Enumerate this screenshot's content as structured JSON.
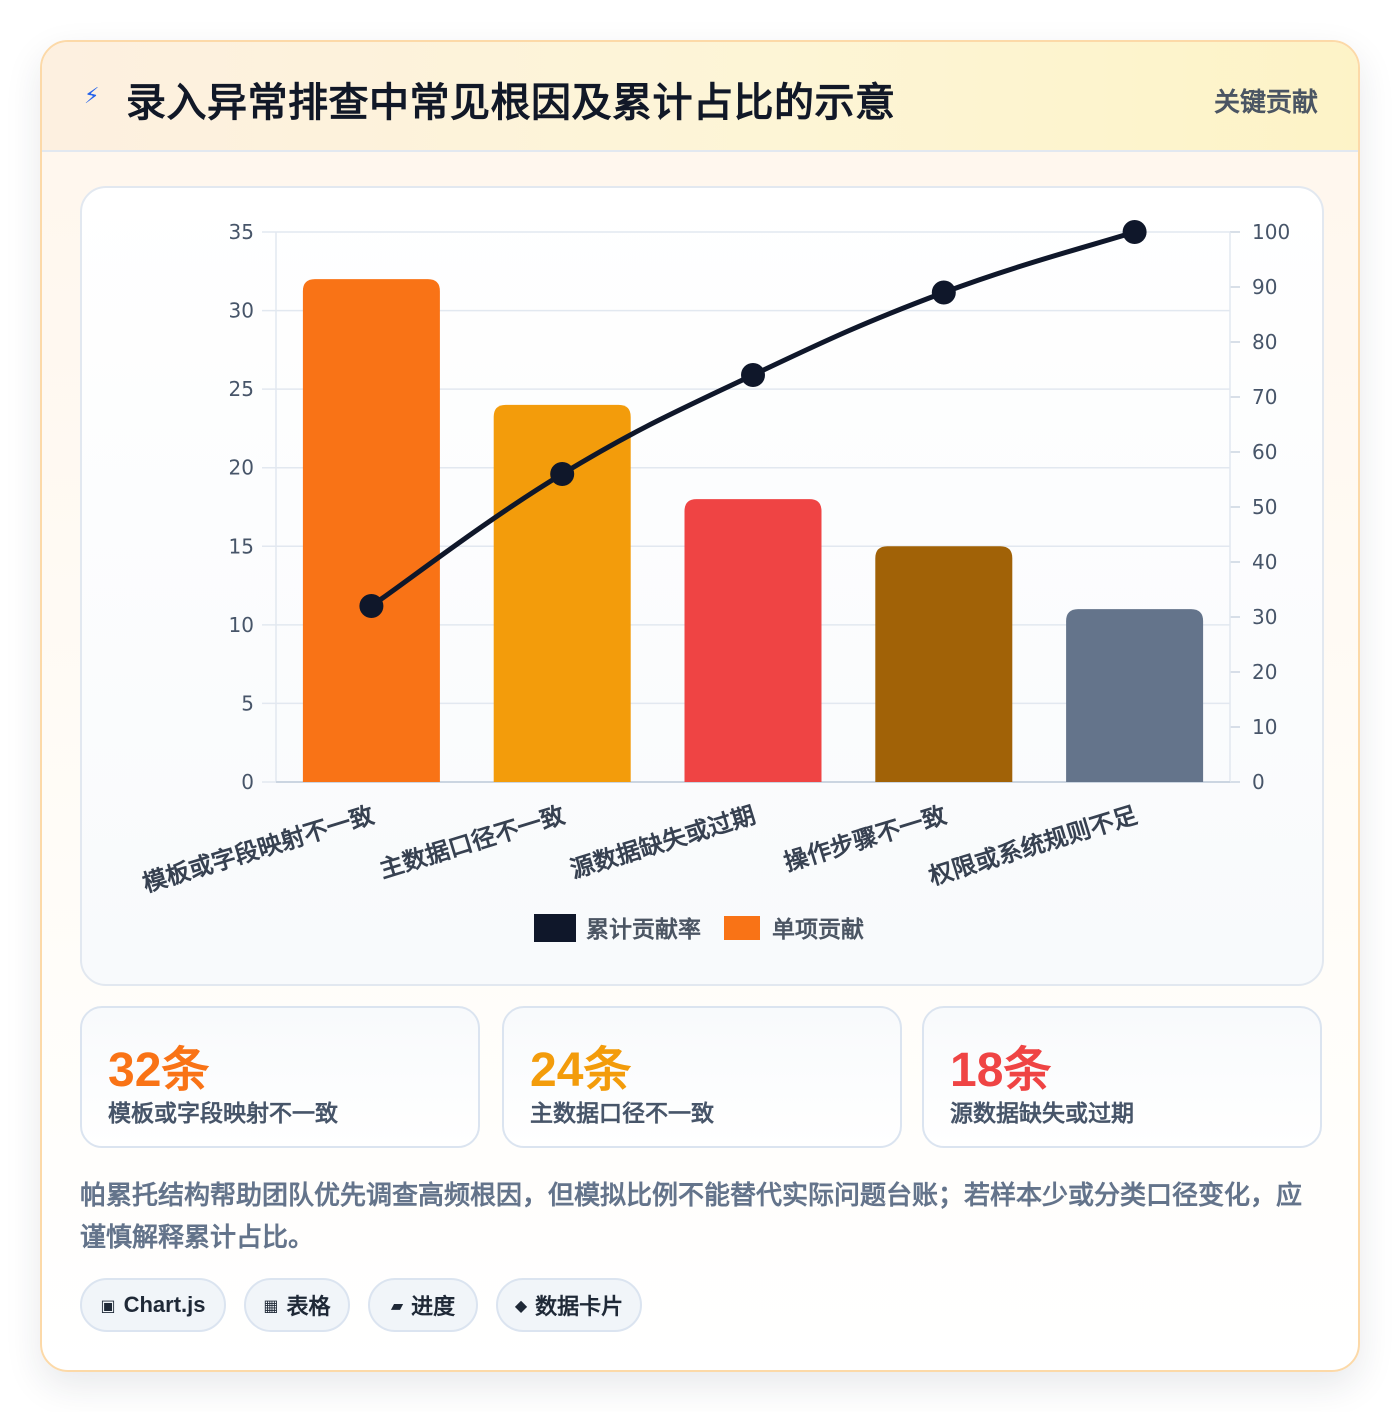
{
  "header": {
    "icon": "lightning-icon",
    "title": "录入异常排查中常见根因及累计占比的示意",
    "badge": "关键贡献"
  },
  "chart_data": {
    "type": "bar",
    "categories": [
      "模板或字段映射不一致",
      "主数据口径不一致",
      "源数据缺失或过期",
      "操作步骤不一致",
      "权限或系统规则不足"
    ],
    "series": [
      {
        "name": "单项贡献",
        "type": "bar",
        "axis": "left",
        "values": [
          32,
          24,
          18,
          15,
          11
        ],
        "colors": [
          "#f97316",
          "#f39c0b",
          "#ef4444",
          "#a16207",
          "#64748b"
        ]
      },
      {
        "name": "累计贡献率",
        "type": "line",
        "axis": "right",
        "values": [
          32,
          56,
          74,
          89,
          100
        ],
        "color": "#0f172a"
      }
    ],
    "y_left": {
      "min": 0,
      "max": 35,
      "ticks": [
        0,
        5,
        10,
        15,
        20,
        25,
        30,
        35
      ]
    },
    "y_right": {
      "min": 0,
      "max": 100,
      "ticks": [
        0,
        10,
        20,
        30,
        40,
        50,
        60,
        70,
        80,
        90,
        100
      ]
    },
    "grid": true,
    "legend": {
      "position": "bottom",
      "items": [
        {
          "label": "累计贡献率",
          "color": "#0f172a"
        },
        {
          "label": "单项贡献",
          "color": "#f97316"
        }
      ]
    }
  },
  "stats": [
    {
      "value": "32条",
      "label": "模板或字段映射不一致",
      "color": "#f97316"
    },
    {
      "value": "24条",
      "label": "主数据口径不一致",
      "color": "#f39c0b"
    },
    {
      "value": "18条",
      "label": "源数据缺失或过期",
      "color": "#ef4444"
    }
  ],
  "note": "帕累托结构帮助团队优先调查高频根因，但模拟比例不能替代实际问题台账；若样本少或分类口径变化，应谨慎解释累计占比。",
  "tags": [
    {
      "icon": "▣",
      "icon_name": "chart-icon",
      "label": "Chart.js"
    },
    {
      "icon": "▦",
      "icon_name": "table-icon",
      "label": "表格"
    },
    {
      "icon": "▰",
      "icon_name": "progress-icon",
      "label": "进度"
    },
    {
      "icon": "◆",
      "icon_name": "card-icon",
      "label": "数据卡片"
    }
  ]
}
